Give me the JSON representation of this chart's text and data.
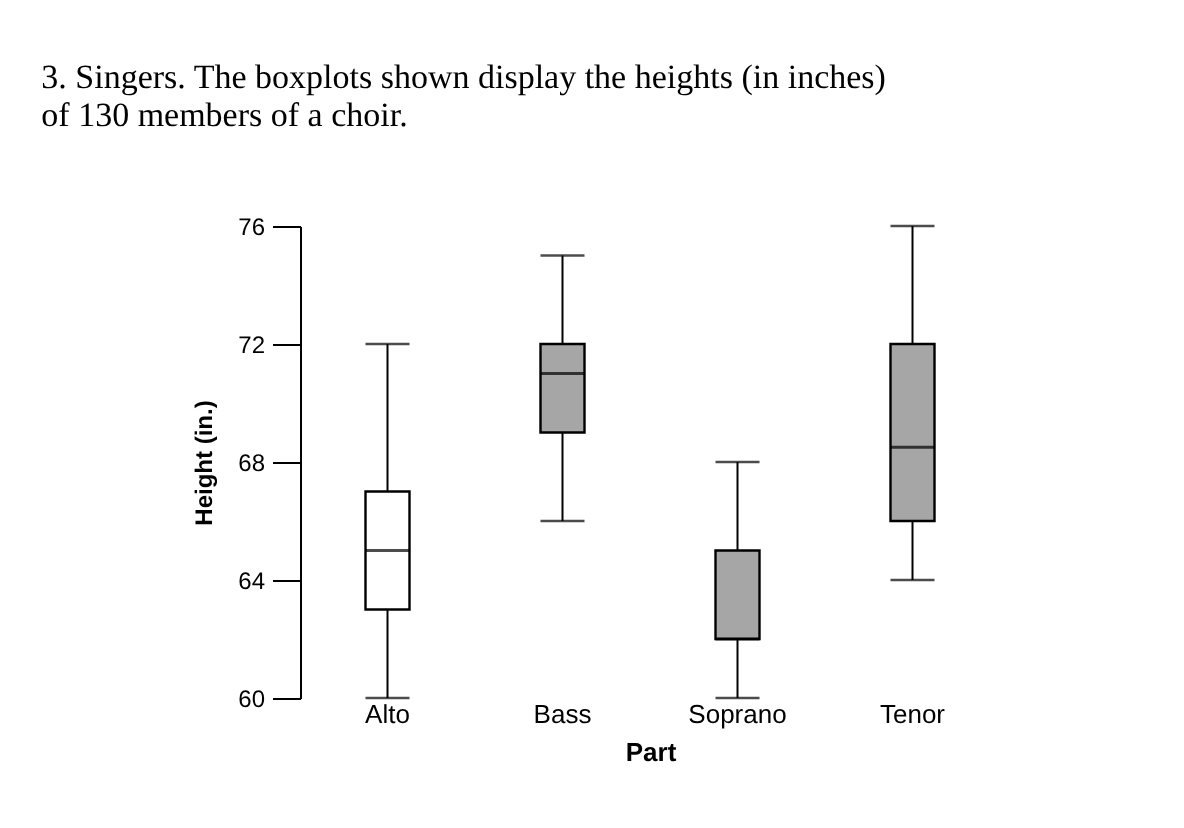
{
  "chart_data": {
    "type": "box",
    "title": "3. Singers. The boxplots shown display the heights (in inches) of 130 members of a choir.",
    "xlabel": "Part",
    "ylabel": "Height (in.)",
    "categories": [
      "Alto",
      "Bass",
      "Soprano",
      "Tenor"
    ],
    "boxes": [
      {
        "low": 60,
        "q1": 63,
        "median": 65,
        "q3": 67,
        "high": 72
      },
      {
        "low": 66,
        "q1": 69,
        "median": 71,
        "q3": 72,
        "high": 75
      },
      {
        "low": 60,
        "q1": 62,
        "median": 62,
        "q3": 65,
        "high": 68
      },
      {
        "low": 64,
        "q1": 66,
        "median": 68.5,
        "q3": 72,
        "high": 76
      }
    ],
    "colors": [
      "#ffffff",
      "#a6a6a6",
      "#a6a6a6",
      "#a6a6a6"
    ],
    "ylim": [
      60,
      76
    ],
    "yticks": [
      60,
      64,
      68,
      72,
      76
    ],
    "grid": false
  }
}
